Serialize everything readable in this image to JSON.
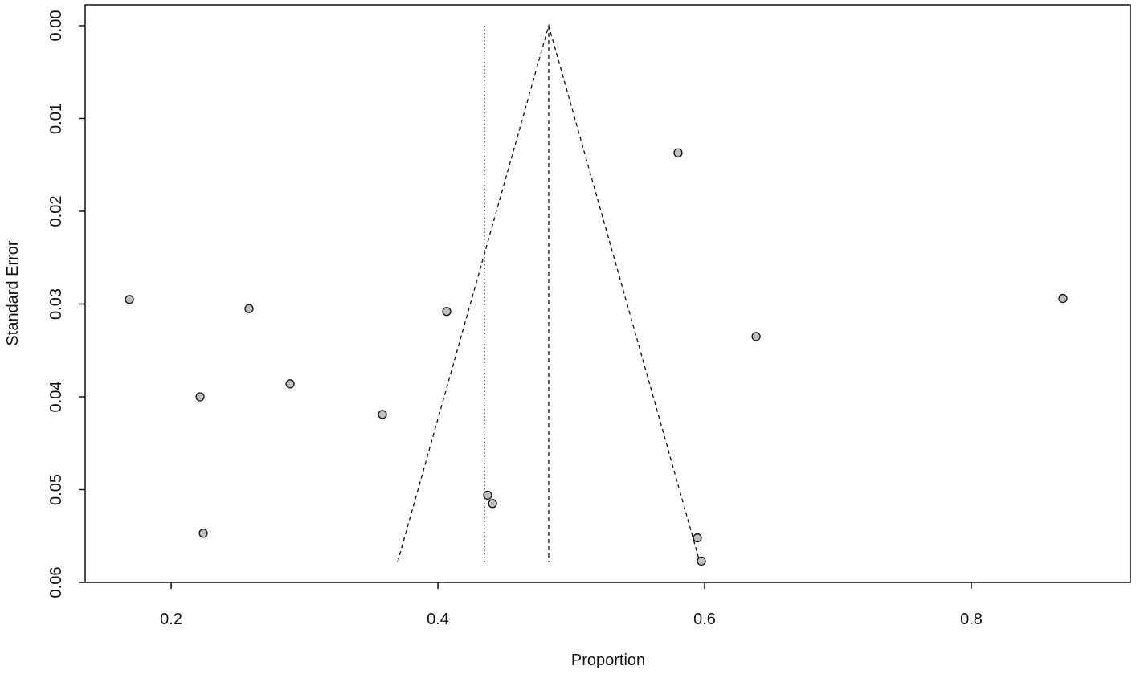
{
  "chart_data": {
    "type": "scatter",
    "x_label": "Proportion",
    "y_label": "Standard Error",
    "xlim": [
      0.1355,
      0.9193
    ],
    "ylim": [
      -0.00225,
      0.06
    ],
    "y_reversed": true,
    "xticks": [
      0.2,
      0.4,
      0.6,
      0.8
    ],
    "yticks": [
      {
        "value": 0,
        "label": "0.00"
      },
      0.01,
      0.02,
      0.03,
      0.04,
      0.05,
      {
        "value": 0.06,
        "label": "0.06"
      }
    ],
    "color": "#bebebe",
    "x": [
      0.1687,
      0.2584,
      0.2217,
      0.2892,
      0.2241,
      0.3584,
      0.4066,
      0.4373,
      0.441,
      0.5801,
      0.6386,
      0.5946,
      0.5976,
      0.8687
    ],
    "values": [
      0.0295,
      0.0305,
      0.04,
      0.0386,
      0.0547,
      0.0419,
      0.0308,
      0.0506,
      0.0515,
      0.0137,
      0.0335,
      0.0552,
      0.0577,
      0.0294
    ],
    "lines": [
      {
        "style": "dashed",
        "x": [
          0.3698,
          0.4831,
          0.5964
        ],
        "y": [
          0.0578,
          0,
          0.0578
        ]
      },
      {
        "style": "dashed",
        "x": [
          0.4831,
          0.4831
        ],
        "y": [
          0,
          0.0578
        ]
      },
      {
        "style": "dotted",
        "x": [
          0.4349,
          0.4349
        ],
        "y": [
          0,
          0.0578
        ]
      }
    ]
  }
}
